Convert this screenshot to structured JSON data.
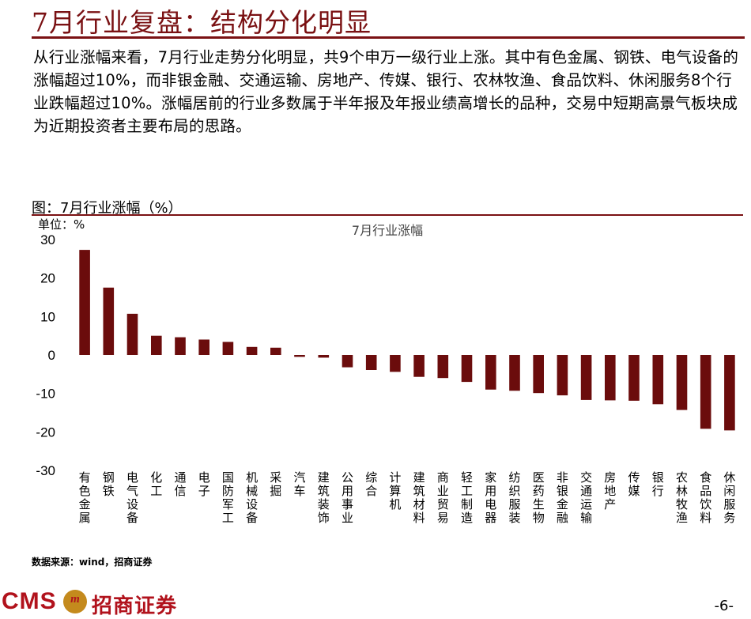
{
  "page": {
    "title": "7月行业复盘：结构分化明显",
    "paragraph": "从行业涨幅来看，7月行业走势分化明显，共9个申万一级行业上涨。其中有色金属、钢铁、电气设备的涨幅超过10%，而非银金融、交通运输、房地产、传媒、银行、农林牧渔、食品饮料、休闲服务8个行业跌幅超过10%。涨幅居前的行业多数属于半年报及年报业绩高增长的品种，交易中短期高景气板块成为近期投资者主要布局的思路。",
    "figure_caption": "图：7月行业涨幅（%）",
    "source": "数据来源：wind，招商证券",
    "page_number": "-6-"
  },
  "footer": {
    "logo_latin": "CMS",
    "logo_badge": "m",
    "brand_name": "招商证券"
  },
  "colors": {
    "accent": "#7a1113",
    "bar": "#6b0c0c",
    "brand": "#b1121c"
  },
  "chart_data": {
    "type": "bar",
    "title": "7月行业涨幅",
    "unit_label": "单位：%",
    "ylim": [
      -30,
      30
    ],
    "yticks": [
      30,
      20,
      10,
      0,
      -10,
      -20,
      -30
    ],
    "grid": false,
    "legend": "none",
    "categories": [
      "有色金属",
      "钢铁",
      "电气设备",
      "化工",
      "通信",
      "电子",
      "国防军工",
      "机械设备",
      "采掘",
      "汽车",
      "建筑装饰",
      "公用事业",
      "综合",
      "计算机",
      "建筑材料",
      "商业贸易",
      "轻工制造",
      "家用电器",
      "纺织服装",
      "医药生物",
      "非银金融",
      "交通运输",
      "房地产",
      "传媒",
      "银行",
      "农林牧渔",
      "食品饮料",
      "休闲服务"
    ],
    "values": [
      27.3,
      17.5,
      10.7,
      5.0,
      4.6,
      4.0,
      3.4,
      2.1,
      1.9,
      -0.5,
      -0.7,
      -3.2,
      -3.9,
      -4.4,
      -5.7,
      -6.0,
      -7.0,
      -9.0,
      -9.3,
      -9.9,
      -10.5,
      -11.7,
      -11.8,
      -11.9,
      -12.8,
      -14.3,
      -19.2,
      -19.6
    ]
  }
}
